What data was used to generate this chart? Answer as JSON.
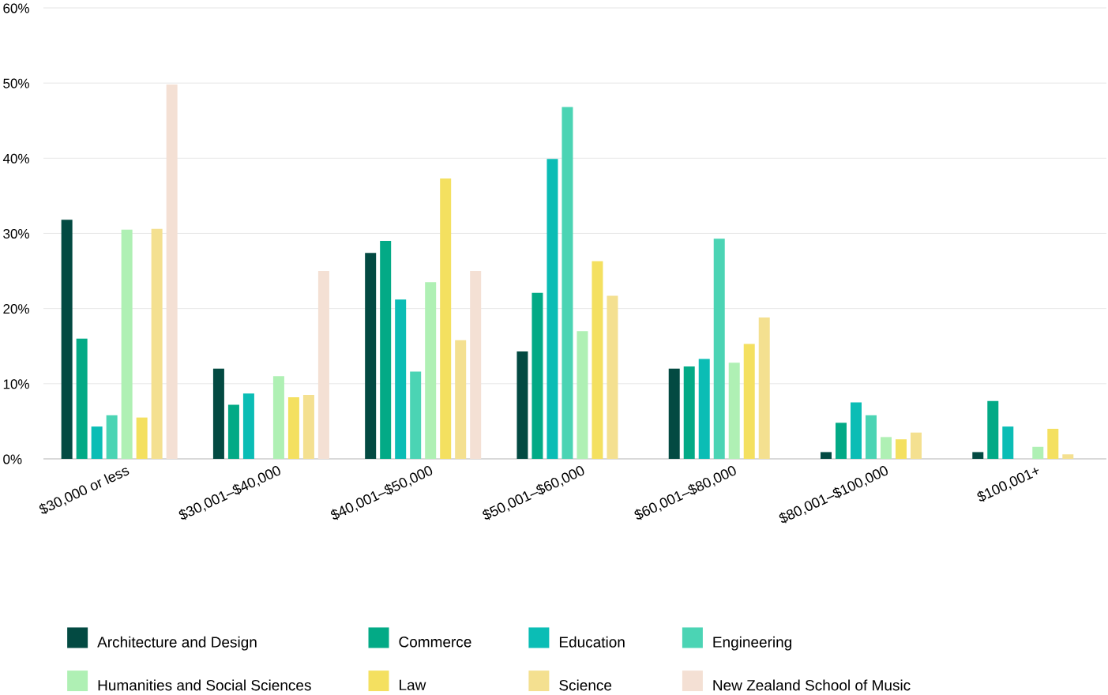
{
  "chart_data": {
    "type": "bar",
    "categories": [
      "$30,000 or less",
      "$30,001–$40,000",
      "$40,001–$50,000",
      "$50,001–$60,000",
      "$60,001–$80,000",
      "$80,001–$100,000",
      "$100,001+"
    ],
    "series": [
      {
        "name": "Architecture and Design",
        "color": "#034a42",
        "values": [
          31.8,
          12.0,
          27.4,
          14.3,
          12.0,
          0.9,
          0.9
        ]
      },
      {
        "name": "Commerce",
        "color": "#03aa86",
        "values": [
          16.0,
          7.2,
          29.0,
          22.1,
          12.3,
          4.8,
          7.7
        ]
      },
      {
        "name": "Education",
        "color": "#0bbdb5",
        "values": [
          4.3,
          8.7,
          21.2,
          39.9,
          13.3,
          7.5,
          4.3
        ]
      },
      {
        "name": "Engineering",
        "color": "#4bd4b4",
        "values": [
          5.8,
          null,
          11.6,
          46.8,
          29.3,
          5.8,
          null
        ]
      },
      {
        "name": "Humanities and Social Sciences",
        "color": "#aff0b4",
        "values": [
          30.5,
          11.0,
          23.5,
          17.0,
          12.8,
          2.9,
          1.6
        ]
      },
      {
        "name": "Law",
        "color": "#f4e060",
        "values": [
          5.5,
          8.2,
          37.3,
          26.3,
          15.3,
          2.6,
          4.0
        ]
      },
      {
        "name": "Science",
        "color": "#f4e090",
        "values": [
          30.6,
          8.5,
          15.8,
          21.7,
          18.8,
          3.5,
          0.6
        ]
      },
      {
        "name": "New Zealand School of Music",
        "color": "#f4e0d4",
        "values": [
          49.8,
          25.0,
          25.0,
          null,
          null,
          null,
          null
        ]
      }
    ],
    "ylim": [
      0,
      60
    ],
    "yticks": [
      {
        "value": 0,
        "label": "0%"
      },
      {
        "value": 10,
        "label": "10%"
      },
      {
        "value": 20,
        "label": "20%"
      },
      {
        "value": 30,
        "label": "30%"
      },
      {
        "value": 40,
        "label": "40%"
      },
      {
        "value": 50,
        "label": "50%"
      },
      {
        "value": 60,
        "label": "60%"
      }
    ],
    "grid": "y",
    "legend": "bottom"
  }
}
